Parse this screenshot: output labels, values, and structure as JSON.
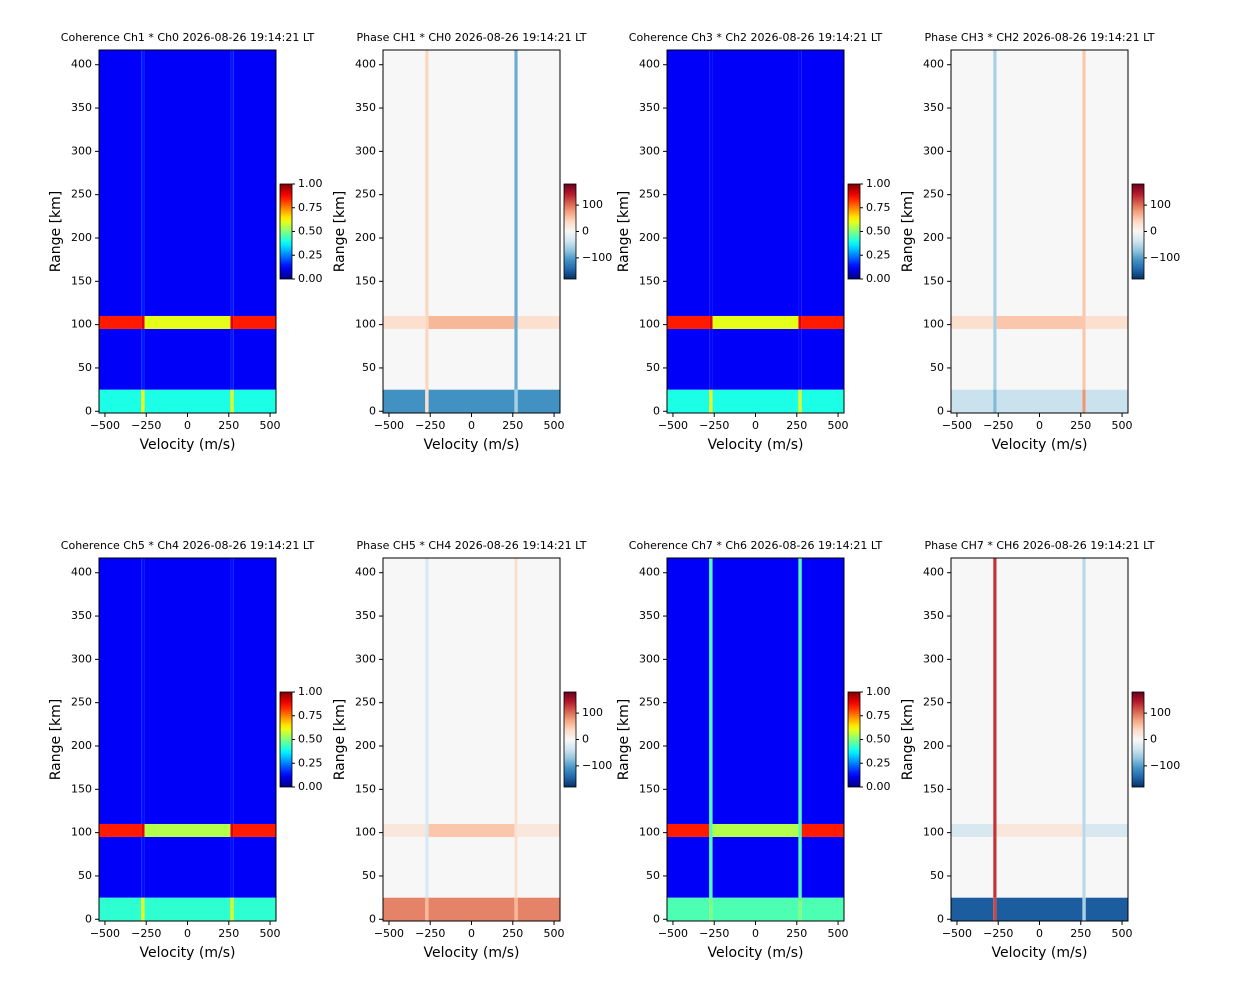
{
  "chart_data": [
    {
      "type": "heatmap",
      "title": "Coherence Ch1 * Ch0 2026-08-26 19:14:21 LT",
      "xlabel": "Velocity (m/s)",
      "ylabel": "Range [km]",
      "xlim": [
        -536,
        536
      ],
      "ylim": [
        -2,
        417
      ],
      "xticks": [
        {
          "value": -500,
          "label": "−500"
        },
        {
          "value": -250,
          "label": "−250"
        },
        0,
        250,
        500
      ],
      "yticks": [
        0,
        50,
        100,
        150,
        200,
        250,
        300,
        350,
        400
      ],
      "x_edges": [
        -536,
        -280,
        -260,
        260,
        280,
        536
      ],
      "y_edges": [
        -2,
        25,
        95,
        110,
        417
      ],
      "z": [
        [
          0.4,
          0.6,
          0.4,
          0.6,
          0.4
        ],
        [
          0.12,
          0.15,
          0.12,
          0.15,
          0.12
        ],
        [
          0.85,
          0.9,
          0.6,
          0.9,
          0.85
        ],
        [
          0.12,
          0.15,
          0.12,
          0.15,
          0.12
        ]
      ],
      "cmap": "jet",
      "zlim": [
        0,
        1
      ],
      "cbar_ticks": [
        {
          "value": 0,
          "label": "0.00"
        },
        {
          "value": 0.25,
          "label": "0.25"
        },
        {
          "value": 0.5,
          "label": "0.50"
        },
        {
          "value": 0.75,
          "label": "0.75"
        },
        {
          "value": 1,
          "label": "1.00"
        }
      ]
    },
    {
      "type": "heatmap",
      "title": "Phase CH1 * CH0 2026-08-26 19:14:21 LT",
      "xlabel": "Velocity (m/s)",
      "ylabel": "Range [km]",
      "xlim": [
        -536,
        536
      ],
      "ylim": [
        -2,
        417
      ],
      "xticks": [
        {
          "value": -500,
          "label": "−500"
        },
        {
          "value": -250,
          "label": "−250"
        },
        0,
        250,
        500
      ],
      "yticks": [
        0,
        50,
        100,
        150,
        200,
        250,
        300,
        350,
        400
      ],
      "x_edges": [
        -536,
        -280,
        -260,
        260,
        280,
        536
      ],
      "y_edges": [
        -2,
        25,
        95,
        110,
        417
      ],
      "z": [
        [
          -110,
          30,
          -110,
          -60,
          -110
        ],
        [
          0,
          40,
          0,
          -90,
          0
        ],
        [
          30,
          40,
          60,
          -90,
          30
        ],
        [
          0,
          40,
          0,
          -90,
          0
        ]
      ],
      "cmap": "RdBu_r",
      "zlim": [
        -180,
        180
      ],
      "cbar_ticks": [
        100,
        0,
        {
          "value": -100,
          "label": "−100"
        }
      ]
    },
    {
      "type": "heatmap",
      "title": "Coherence Ch3 * Ch2 2026-08-26 19:14:21 LT",
      "xlabel": "Velocity (m/s)",
      "ylabel": "Range [km]",
      "xlim": [
        -536,
        536
      ],
      "ylim": [
        -2,
        417
      ],
      "xticks": [
        {
          "value": -500,
          "label": "−500"
        },
        {
          "value": -250,
          "label": "−250"
        },
        0,
        250,
        500
      ],
      "yticks": [
        0,
        50,
        100,
        150,
        200,
        250,
        300,
        350,
        400
      ],
      "x_edges": [
        -536,
        -280,
        -260,
        260,
        280,
        536
      ],
      "y_edges": [
        -2,
        25,
        95,
        110,
        417
      ],
      "z": [
        [
          0.4,
          0.6,
          0.4,
          0.6,
          0.4
        ],
        [
          0.12,
          0.13,
          0.12,
          0.13,
          0.12
        ],
        [
          0.85,
          0.9,
          0.6,
          0.9,
          0.85
        ],
        [
          0.12,
          0.13,
          0.12,
          0.13,
          0.12
        ]
      ],
      "cmap": "jet",
      "zlim": [
        0,
        1
      ],
      "cbar_ticks": [
        {
          "value": 0,
          "label": "0.00"
        },
        {
          "value": 0.25,
          "label": "0.25"
        },
        {
          "value": 0.5,
          "label": "0.50"
        },
        {
          "value": 0.75,
          "label": "0.75"
        },
        {
          "value": 1,
          "label": "1.00"
        }
      ]
    },
    {
      "type": "heatmap",
      "title": "Phase CH3 * CH2 2026-08-26 19:14:21 LT",
      "xlabel": "Velocity (m/s)",
      "ylabel": "Range [km]",
      "xlim": [
        -536,
        536
      ],
      "ylim": [
        -2,
        417
      ],
      "xticks": [
        {
          "value": -500,
          "label": "−500"
        },
        {
          "value": -250,
          "label": "−250"
        },
        0,
        250,
        500
      ],
      "yticks": [
        0,
        50,
        100,
        150,
        200,
        250,
        300,
        350,
        400
      ],
      "x_edges": [
        -536,
        -280,
        -260,
        260,
        280,
        536
      ],
      "y_edges": [
        -2,
        25,
        95,
        110,
        417
      ],
      "z": [
        [
          -40,
          -80,
          -40,
          80,
          -40
        ],
        [
          0,
          -60,
          0,
          50,
          0
        ],
        [
          30,
          -60,
          50,
          50,
          30
        ],
        [
          0,
          -60,
          0,
          50,
          0
        ]
      ],
      "cmap": "RdBu_r",
      "zlim": [
        -180,
        180
      ],
      "cbar_ticks": [
        100,
        0,
        {
          "value": -100,
          "label": "−100"
        }
      ]
    },
    {
      "type": "heatmap",
      "title": "Coherence Ch5 * Ch4 2026-08-26 19:14:21 LT",
      "xlabel": "Velocity (m/s)",
      "ylabel": "Range [km]",
      "xlim": [
        -536,
        536
      ],
      "ylim": [
        -2,
        417
      ],
      "xticks": [
        {
          "value": -500,
          "label": "−500"
        },
        {
          "value": -250,
          "label": "−250"
        },
        0,
        250,
        500
      ],
      "yticks": [
        0,
        50,
        100,
        150,
        200,
        250,
        300,
        350,
        400
      ],
      "x_edges": [
        -536,
        -280,
        -260,
        260,
        280,
        536
      ],
      "y_edges": [
        -2,
        25,
        95,
        110,
        417
      ],
      "z": [
        [
          0.42,
          0.6,
          0.42,
          0.6,
          0.42
        ],
        [
          0.12,
          0.14,
          0.12,
          0.14,
          0.12
        ],
        [
          0.85,
          0.9,
          0.55,
          0.9,
          0.85
        ],
        [
          0.12,
          0.14,
          0.12,
          0.14,
          0.12
        ]
      ],
      "cmap": "jet",
      "zlim": [
        0,
        1
      ],
      "cbar_ticks": [
        {
          "value": 0,
          "label": "0.00"
        },
        {
          "value": 0.25,
          "label": "0.25"
        },
        {
          "value": 0.5,
          "label": "0.50"
        },
        {
          "value": 0.75,
          "label": "0.75"
        },
        {
          "value": 1,
          "label": "1.00"
        }
      ]
    },
    {
      "type": "heatmap",
      "title": "Phase CH5 * CH4 2026-08-26 19:14:21 LT",
      "xlabel": "Velocity (m/s)",
      "ylabel": "Range [km]",
      "xlim": [
        -536,
        536
      ],
      "ylim": [
        -2,
        417
      ],
      "xticks": [
        {
          "value": -500,
          "label": "−500"
        },
        {
          "value": -250,
          "label": "−250"
        },
        0,
        250,
        500
      ],
      "yticks": [
        0,
        50,
        100,
        150,
        200,
        250,
        300,
        350,
        400
      ],
      "x_edges": [
        -536,
        -280,
        -260,
        260,
        280,
        536
      ],
      "y_edges": [
        -2,
        25,
        95,
        110,
        417
      ],
      "z": [
        [
          90,
          60,
          90,
          60,
          90
        ],
        [
          0,
          -30,
          0,
          30,
          0
        ],
        [
          20,
          -30,
          50,
          30,
          20
        ],
        [
          0,
          -30,
          0,
          30,
          0
        ]
      ],
      "cmap": "RdBu_r",
      "zlim": [
        -180,
        180
      ],
      "cbar_ticks": [
        100,
        0,
        {
          "value": -100,
          "label": "−100"
        }
      ]
    },
    {
      "type": "heatmap",
      "title": "Coherence Ch7 * Ch6 2026-08-26 19:14:21 LT",
      "xlabel": "Velocity (m/s)",
      "ylabel": "Range [km]",
      "xlim": [
        -536,
        536
      ],
      "ylim": [
        -2,
        417
      ],
      "xticks": [
        {
          "value": -500,
          "label": "−500"
        },
        {
          "value": -250,
          "label": "−250"
        },
        0,
        250,
        500
      ],
      "yticks": [
        0,
        50,
        100,
        150,
        200,
        250,
        300,
        350,
        400
      ],
      "x_edges": [
        -536,
        -280,
        -260,
        260,
        280,
        536
      ],
      "y_edges": [
        -2,
        25,
        95,
        110,
        417
      ],
      "z": [
        [
          0.45,
          0.5,
          0.45,
          0.5,
          0.45
        ],
        [
          0.12,
          0.45,
          0.12,
          0.45,
          0.12
        ],
        [
          0.85,
          0.45,
          0.55,
          0.45,
          0.85
        ],
        [
          0.12,
          0.45,
          0.12,
          0.45,
          0.12
        ]
      ],
      "cmap": "jet",
      "zlim": [
        0,
        1
      ],
      "cbar_ticks": [
        {
          "value": 0,
          "label": "0.00"
        },
        {
          "value": 0.25,
          "label": "0.25"
        },
        {
          "value": 0.5,
          "label": "0.50"
        },
        {
          "value": 0.75,
          "label": "0.75"
        },
        {
          "value": 1,
          "label": "1.00"
        }
      ]
    },
    {
      "type": "heatmap",
      "title": "Phase CH7 * CH6 2026-08-26 19:14:21 LT",
      "xlabel": "Velocity (m/s)",
      "ylabel": "Range [km]",
      "xlim": [
        -536,
        536
      ],
      "ylim": [
        -2,
        417
      ],
      "xticks": [
        {
          "value": -500,
          "label": "−500"
        },
        {
          "value": -250,
          "label": "−250"
        },
        0,
        250,
        500
      ],
      "yticks": [
        0,
        50,
        100,
        150,
        200,
        250,
        300,
        350,
        400
      ],
      "x_edges": [
        -536,
        -280,
        -260,
        260,
        280,
        536
      ],
      "y_edges": [
        -2,
        25,
        95,
        110,
        417
      ],
      "z": [
        [
          -150,
          120,
          -150,
          -60,
          -150
        ],
        [
          0,
          130,
          0,
          -50,
          0
        ],
        [
          -30,
          130,
          20,
          -50,
          -30
        ],
        [
          0,
          130,
          0,
          -50,
          0
        ]
      ],
      "cmap": "RdBu_r",
      "zlim": [
        -180,
        180
      ],
      "cbar_ticks": [
        100,
        0,
        {
          "value": -100,
          "label": "−100"
        }
      ]
    }
  ]
}
